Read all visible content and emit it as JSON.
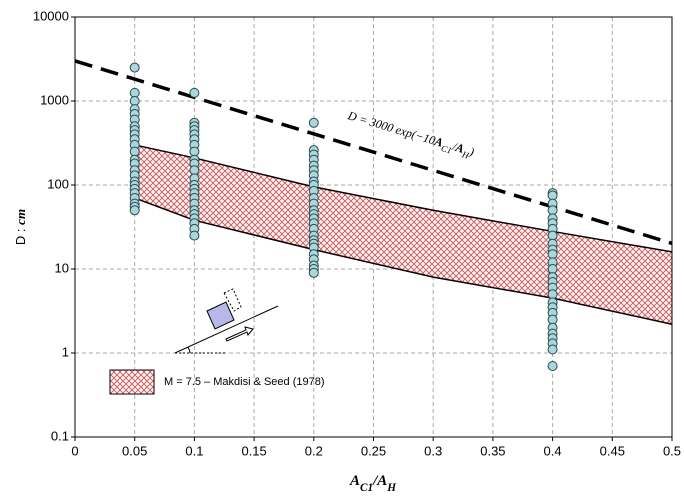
{
  "chart_data": {
    "type": "scatter",
    "x_label": [
      "A",
      "C1",
      "/",
      "A",
      "H"
    ],
    "y_label": [
      "D : ",
      "cm"
    ],
    "annotation": [
      "D = 3000 exp(−10",
      "A",
      "C1",
      "/",
      "A",
      "H",
      ")"
    ],
    "xlim": [
      0,
      0.5
    ],
    "ylim": [
      0.1,
      10000
    ],
    "log_y": true,
    "grid": true,
    "xticks": [
      0,
      0.05,
      0.1,
      0.15,
      0.2,
      0.25,
      0.3,
      0.35,
      0.4,
      0.45,
      0.5
    ],
    "yticks": [
      0.1,
      1,
      10,
      100,
      1000,
      10000
    ],
    "legend": "lower left",
    "series": [
      {
        "type": "area",
        "name": "M = 7.5 – Makdisi & Seed (1978)",
        "color": "#e05a5a",
        "x": [
          0.05,
          0.1,
          0.2,
          0.3,
          0.4,
          0.5
        ],
        "high": [
          300,
          210,
          95,
          50,
          28,
          16
        ],
        "low": [
          70,
          38,
          17,
          8,
          4.5,
          2.2
        ]
      },
      {
        "type": "line",
        "color": "#000000",
        "x": [
          0,
          0.5
        ],
        "values": [
          3000,
          20.2
        ]
      },
      {
        "type": "scatter",
        "color": "#a8d8dc",
        "x": [
          0.05,
          0.05,
          0.05,
          0.05,
          0.05,
          0.05,
          0.05,
          0.05,
          0.05,
          0.05,
          0.05,
          0.05,
          0.05,
          0.05,
          0.05,
          0.05,
          0.05,
          0.05,
          0.05,
          0.05,
          0.05,
          0.05,
          0.05,
          0.05,
          0.1,
          0.1,
          0.1,
          0.1,
          0.1,
          0.1,
          0.1,
          0.1,
          0.1,
          0.1,
          0.1,
          0.1,
          0.1,
          0.1,
          0.1,
          0.1,
          0.1,
          0.1,
          0.1,
          0.1,
          0.1,
          0.1,
          0.1,
          0.2,
          0.2,
          0.2,
          0.2,
          0.2,
          0.2,
          0.2,
          0.2,
          0.2,
          0.2,
          0.2,
          0.2,
          0.2,
          0.2,
          0.2,
          0.2,
          0.2,
          0.2,
          0.2,
          0.2,
          0.2,
          0.2,
          0.2,
          0.2,
          0.2,
          0.2,
          0.4,
          0.4,
          0.4,
          0.4,
          0.4,
          0.4,
          0.4,
          0.4,
          0.4,
          0.4,
          0.4,
          0.4,
          0.4,
          0.4,
          0.4,
          0.4,
          0.4,
          0.4,
          0.4,
          0.4,
          0.4,
          0.4,
          0.4,
          0.4,
          0.4,
          0.4,
          0.4
        ],
        "values": [
          2500,
          1250,
          1000,
          800,
          700,
          600,
          500,
          450,
          400,
          350,
          300,
          250,
          200,
          180,
          150,
          130,
          110,
          100,
          90,
          80,
          70,
          60,
          55,
          50,
          1250,
          550,
          500,
          450,
          400,
          350,
          300,
          250,
          200,
          180,
          150,
          120,
          100,
          90,
          80,
          70,
          60,
          50,
          45,
          40,
          35,
          30,
          25,
          550,
          260,
          230,
          200,
          170,
          150,
          130,
          110,
          100,
          85,
          70,
          60,
          50,
          45,
          40,
          35,
          30,
          25,
          22,
          20,
          18,
          15,
          13,
          11,
          10,
          9,
          80,
          75,
          60,
          50,
          40,
          35,
          30,
          25,
          20,
          17,
          15,
          12,
          10,
          8,
          7,
          6,
          5,
          4,
          3.5,
          3,
          2.5,
          2,
          1.7,
          1.5,
          1.3,
          1.1,
          0.7
        ]
      }
    ]
  }
}
